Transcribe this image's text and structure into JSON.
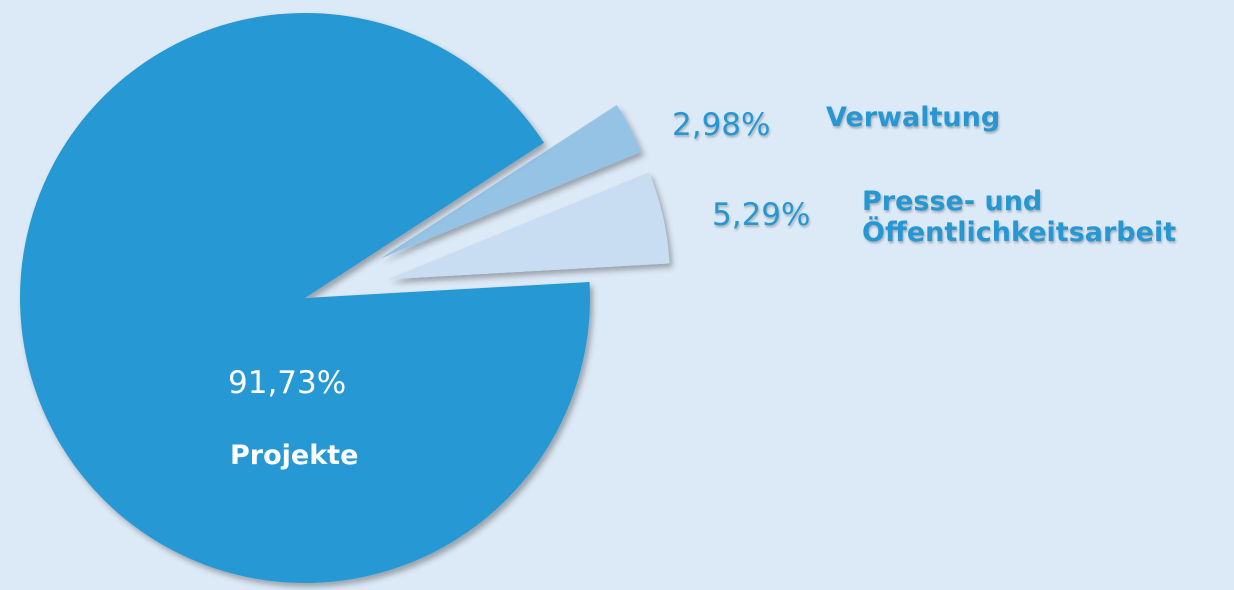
{
  "chart_data": {
    "type": "pie",
    "categories": [
      "Verwaltung",
      "Presse- und Öffentlichkeitsarbeit",
      "Projekte"
    ],
    "values": [
      2.98,
      5.29,
      91.73
    ],
    "value_labels": [
      "2,98%",
      "5,29%",
      "91,73%"
    ],
    "colors": [
      "#95c3e6",
      "#c9ddf2",
      "#2599d4"
    ],
    "explode": [
      true,
      true,
      false
    ]
  }
}
